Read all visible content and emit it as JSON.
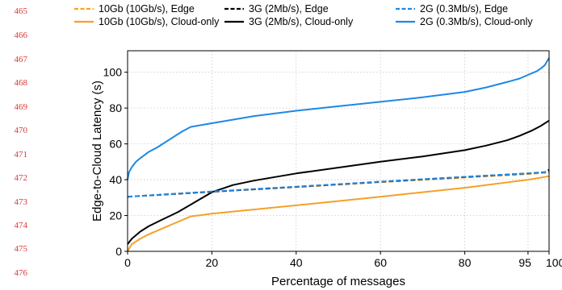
{
  "margin_line_numbers": [
    "465",
    "466",
    "467",
    "468",
    "469",
    "470",
    "471",
    "472",
    "473",
    "474",
    "475",
    "476"
  ],
  "chart_data": {
    "type": "line",
    "title": "",
    "xlabel": "Percentage of messages",
    "ylabel": "Edge-to-Cloud Latency (s)",
    "xlim": [
      0,
      100
    ],
    "ylim": [
      0,
      112
    ],
    "xticks": [
      0,
      20,
      40,
      60,
      80,
      95,
      100
    ],
    "yticks": [
      0,
      20,
      40,
      60,
      80,
      100
    ],
    "grid": true,
    "legend_position": "top",
    "series": [
      {
        "name": "10Gb (10Gb/s), Edge",
        "color": "#ff9f1c",
        "dash": "dashed",
        "x": [
          0,
          20,
          40,
          60,
          80,
          95,
          100
        ],
        "y": [
          30.5,
          33.3,
          35.9,
          38.6,
          41.2,
          43.2,
          44.0
        ]
      },
      {
        "name": "10Gb (10Gb/s), Cloud-only",
        "color": "#f5a028",
        "dash": "solid",
        "x": [
          0,
          1,
          3,
          5,
          8,
          11,
          15,
          20,
          40,
          60,
          80,
          95,
          99,
          100
        ],
        "y": [
          0,
          4,
          7,
          9.5,
          12.5,
          15.5,
          19.5,
          21,
          25.7,
          30.5,
          35.5,
          40,
          41.5,
          42
        ]
      },
      {
        "name": "3G (2Mb/s), Edge",
        "color": "#000000",
        "dash": "dashed",
        "x": [
          0,
          20,
          40,
          60,
          80,
          95,
          99,
          100
        ],
        "y": [
          30.5,
          33.3,
          36.0,
          38.8,
          41.5,
          43.5,
          44.2,
          45.5
        ]
      },
      {
        "name": "3G (2Mb/s), Cloud-only",
        "color": "#000000",
        "dash": "solid",
        "x": [
          0,
          1,
          3,
          5,
          8,
          12,
          16,
          20,
          25,
          30,
          40,
          60,
          70,
          80,
          85,
          90,
          93,
          96,
          98,
          100
        ],
        "y": [
          4,
          7,
          11,
          14,
          17.5,
          22,
          27.5,
          33,
          37,
          39.5,
          43.5,
          50,
          53,
          56.5,
          59,
          62,
          64.5,
          67.5,
          70,
          73
        ]
      },
      {
        "name": "2G (0.3Mb/s), Edge",
        "color": "#1e88e5",
        "dash": "dashed",
        "x": [
          0,
          20,
          40,
          60,
          80,
          95,
          100
        ],
        "y": [
          30.5,
          33.4,
          36.1,
          38.9,
          41.6,
          43.5,
          44.3
        ]
      },
      {
        "name": "2G (0.3Mb/s), Cloud-only",
        "color": "#1e88e5",
        "dash": "solid",
        "x": [
          0,
          0.3,
          1,
          2,
          3,
          5,
          7,
          9,
          11,
          13,
          15,
          20,
          30,
          40,
          50,
          60,
          70,
          80,
          85,
          90,
          93,
          95,
          97,
          98,
          99,
          99.5,
          100
        ],
        "y": [
          40,
          44,
          47,
          50,
          52,
          55.5,
          58,
          61,
          64,
          67,
          69.5,
          71.5,
          75.5,
          78.5,
          81,
          83.5,
          86,
          89,
          91.5,
          94.5,
          96.5,
          98.5,
          100.5,
          102,
          104,
          106,
          108
        ]
      }
    ]
  }
}
